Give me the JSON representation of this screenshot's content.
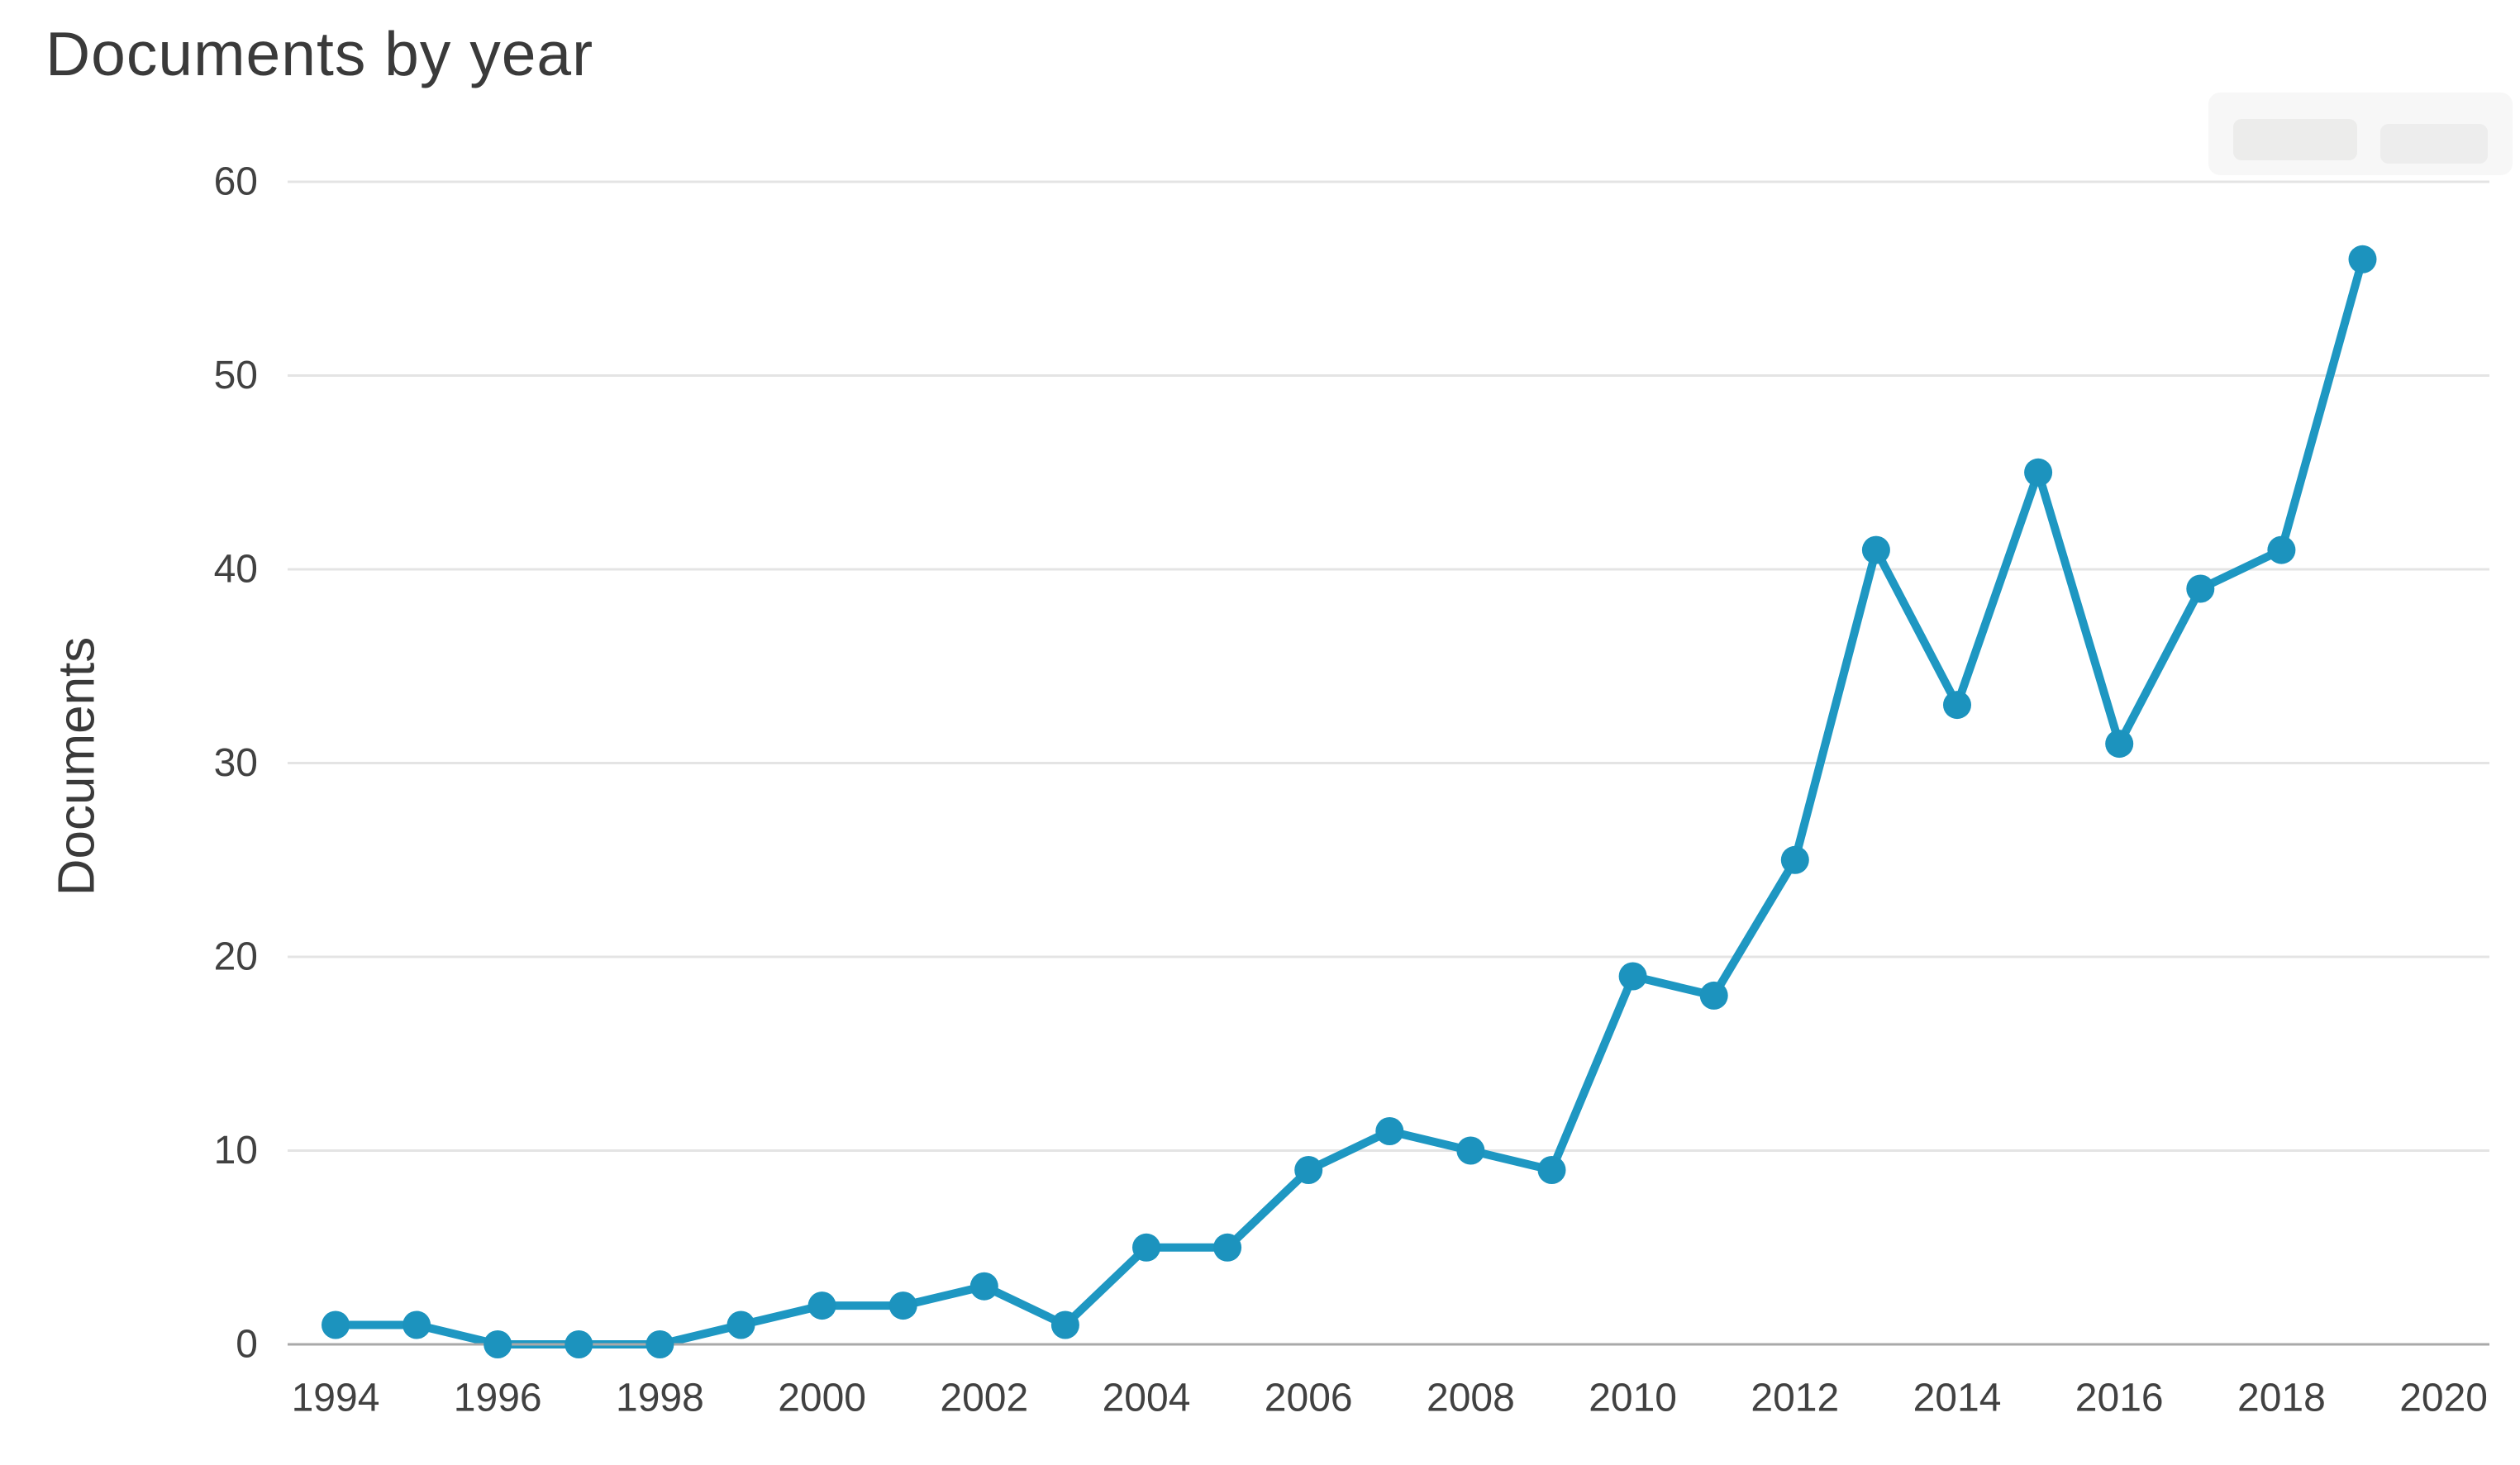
{
  "header": {
    "title": "Documents by year"
  },
  "chart_data": {
    "type": "line",
    "title": "Documents by year",
    "xlabel": "",
    "ylabel": "Documents",
    "x": [
      1994,
      1995,
      1996,
      1997,
      1998,
      1999,
      2000,
      2001,
      2002,
      2003,
      2004,
      2005,
      2006,
      2007,
      2008,
      2009,
      2010,
      2011,
      2012,
      2013,
      2014,
      2015,
      2016,
      2017,
      2018,
      2019
    ],
    "values": [
      1,
      1,
      0,
      0,
      0,
      1,
      2,
      2,
      3,
      1,
      5,
      5,
      9,
      11,
      10,
      9,
      19,
      18,
      25,
      41,
      33,
      45,
      31,
      39,
      41,
      56
    ],
    "ylim": [
      0,
      60
    ],
    "xlim": [
      1994,
      2020
    ],
    "yticks": [
      0,
      10,
      20,
      30,
      40,
      50,
      60
    ],
    "xticks": [
      1994,
      1996,
      1998,
      2000,
      2002,
      2004,
      2006,
      2008,
      2010,
      2012,
      2014,
      2016,
      2018,
      2020
    ],
    "grid": true,
    "legend": "none",
    "colors": {
      "line": "#1e97c2",
      "marker": "#1c93be",
      "grid": "#e4e4e4",
      "axis": "#a9a9a9",
      "tick_text": "#414141",
      "title_text": "#3a3a3a"
    }
  }
}
